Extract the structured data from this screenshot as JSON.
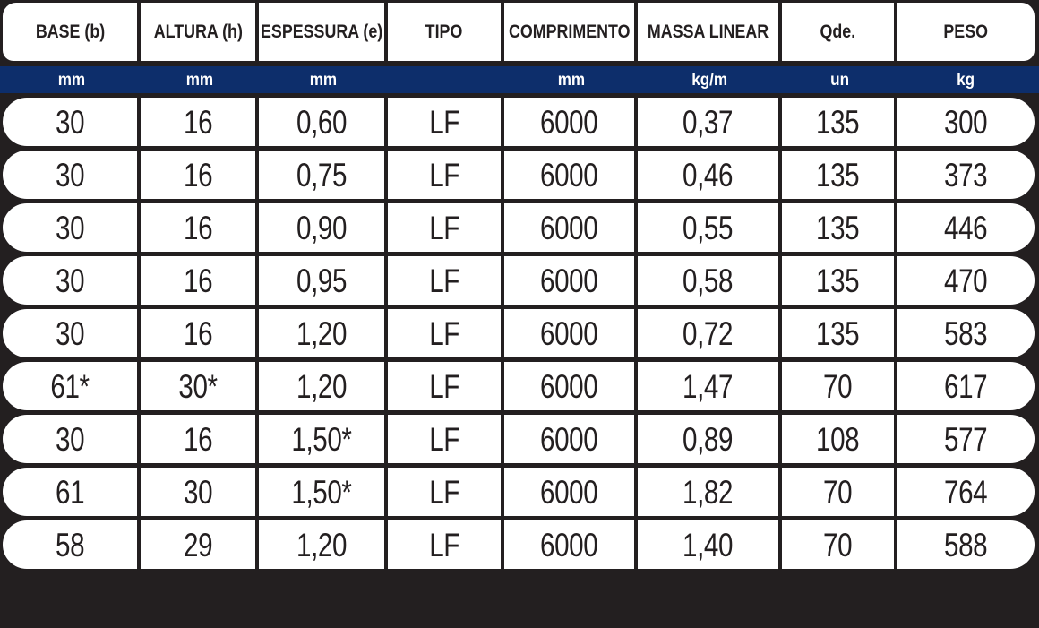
{
  "table": {
    "columns": [
      {
        "label": "BASE (b)",
        "unit": "mm"
      },
      {
        "label": "ALTURA (h)",
        "unit": "mm"
      },
      {
        "label": "ESPESSURA (e)",
        "unit": "mm"
      },
      {
        "label": "TIPO",
        "unit": ""
      },
      {
        "label": "COMPRIMENTO",
        "unit": "mm"
      },
      {
        "label": "MASSA LINEAR",
        "unit": "kg/m"
      },
      {
        "label": "Qde.",
        "unit": "un"
      },
      {
        "label": "PESO",
        "unit": "kg"
      }
    ],
    "rows": [
      [
        "30",
        "16",
        "0,60",
        "LF",
        "6000",
        "0,37",
        "135",
        "300"
      ],
      [
        "30",
        "16",
        "0,75",
        "LF",
        "6000",
        "0,46",
        "135",
        "373"
      ],
      [
        "30",
        "16",
        "0,90",
        "LF",
        "6000",
        "0,55",
        "135",
        "446"
      ],
      [
        "30",
        "16",
        "0,95",
        "LF",
        "6000",
        "0,58",
        "135",
        "470"
      ],
      [
        "30",
        "16",
        "1,20",
        "LF",
        "6000",
        "0,72",
        "135",
        "583"
      ],
      [
        "61*",
        "30*",
        "1,20",
        "LF",
        "6000",
        "1,47",
        "70",
        "617"
      ],
      [
        "30",
        "16",
        "1,50*",
        "LF",
        "6000",
        "0,89",
        "108",
        "577"
      ],
      [
        "61",
        "30",
        "1,50*",
        "LF",
        "6000",
        "1,82",
        "70",
        "764"
      ],
      [
        "58",
        "29",
        "1,20",
        "LF",
        "6000",
        "1,40",
        "70",
        "588"
      ]
    ]
  },
  "colors": {
    "background": "#231f20",
    "unit_band_blue": "#0d2e6b",
    "cell_white": "#ffffff",
    "text_dark": "#231f20",
    "unit_text_white": "#ffffff"
  }
}
